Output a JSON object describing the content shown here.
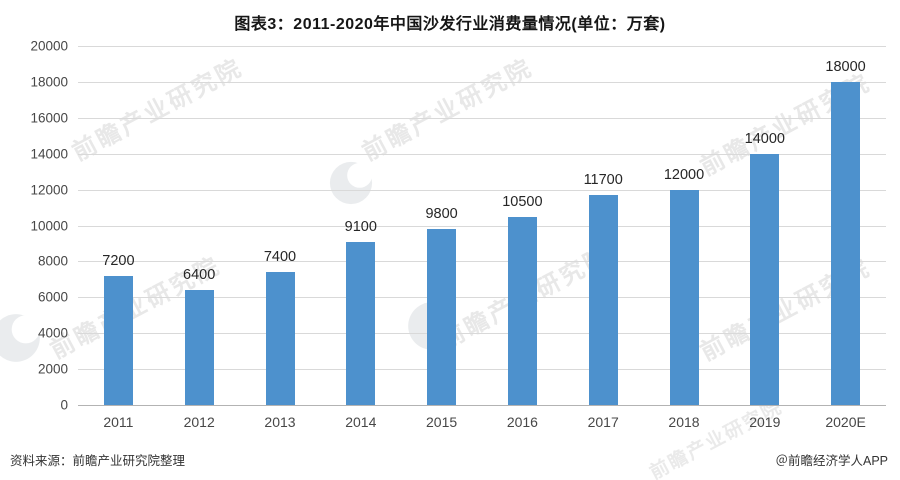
{
  "title": "图表3：2011-2020年中国沙发行业消费量情况(单位：万套)",
  "chart_data": {
    "type": "bar",
    "title": "图表3：2011-2020年中国沙发行业消费量情况(单位：万套)",
    "categories": [
      "2011",
      "2012",
      "2013",
      "2014",
      "2015",
      "2016",
      "2017",
      "2018",
      "2019",
      "2020E"
    ],
    "values": [
      7200,
      6400,
      7400,
      9100,
      9800,
      10500,
      11700,
      12000,
      14000,
      18000
    ],
    "unit": "万套",
    "xlabel": "",
    "ylabel": "",
    "ylim": [
      0,
      20000
    ],
    "ytick_step": 2000,
    "grid": true,
    "legend": "none",
    "bar_color": "#4d91cd",
    "gridline_color": "#d9d9d9",
    "baseline_color": "#b3b3b3",
    "value_label_color": "#262626"
  },
  "footer": {
    "source": "资料来源：前瞻产业研究院整理",
    "credit": "＠前瞻经济学人APP"
  },
  "watermark": {
    "text": "前瞻产业研究院",
    "logo": "qianzhan-logo"
  }
}
